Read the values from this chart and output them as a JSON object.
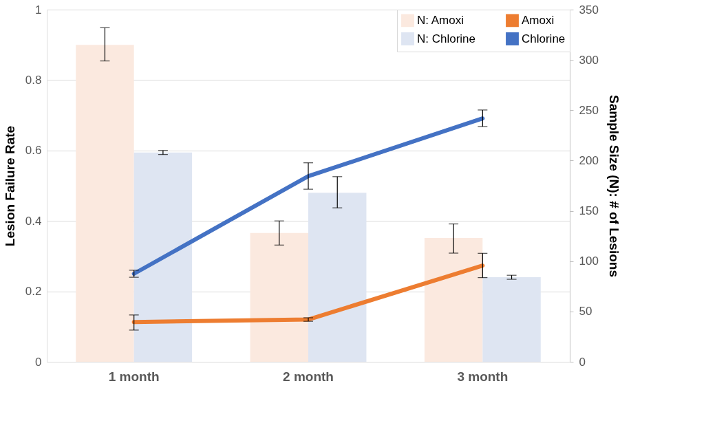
{
  "chart_data": {
    "type": "bar",
    "categories": [
      "1 month",
      "2 month",
      "3 month"
    ],
    "ylabel": "Lesion Failure Rate",
    "y2label": "Sample Size (N): # of Lesions",
    "ylim": [
      0,
      1
    ],
    "yticks": [
      0,
      0.2,
      0.4,
      0.6,
      0.8,
      1
    ],
    "y2lim": [
      0,
      350
    ],
    "y2ticks": [
      0,
      50,
      100,
      150,
      200,
      250,
      300,
      350
    ],
    "grid": "y",
    "legend": "top right",
    "series": [
      {
        "name": "N: Amoxi",
        "axis": "y2",
        "color": "#fbe9df",
        "values": [
          315,
          128,
          123
        ],
        "errors": [
          [
            299,
            332
          ],
          [
            116,
            140
          ],
          [
            108,
            137
          ]
        ]
      },
      {
        "name": "N: Chlorine",
        "axis": "y2",
        "color": "#dee5f2",
        "values": [
          208,
          168,
          84
        ],
        "errors": [
          [
            206,
            210
          ],
          [
            153,
            184
          ],
          [
            82,
            86
          ]
        ]
      },
      {
        "name": "Amoxi",
        "type": "line",
        "color": "#ed7d31",
        "values": [
          0.113,
          0.12,
          0.273
        ],
        "errors": [
          [
            0.09,
            0.133
          ],
          [
            0.115,
            0.125
          ],
          [
            0.239,
            0.308
          ]
        ]
      },
      {
        "name": "Chlorine",
        "type": "line",
        "color": "#4472c4",
        "values": [
          0.25,
          0.527,
          0.691
        ],
        "errors": [
          [
            0.24,
            0.26
          ],
          [
            0.49,
            0.565
          ],
          [
            0.668,
            0.715
          ]
        ]
      }
    ]
  }
}
